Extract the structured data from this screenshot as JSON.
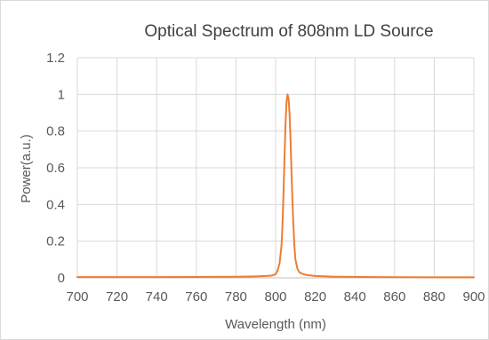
{
  "chart_data": {
    "type": "line",
    "title": "Optical Spectrum of 808nm  LD Source",
    "xlabel": "Wavelength (nm)",
    "ylabel": "Power(a.u.)",
    "xlim": [
      700,
      900
    ],
    "ylim": [
      0,
      1.2
    ],
    "x_ticks": [
      "700",
      "720",
      "740",
      "760",
      "780",
      "800",
      "820",
      "840",
      "860",
      "880",
      "900"
    ],
    "y_ticks": [
      "0",
      "0.2",
      "0.4",
      "0.6",
      "0.8",
      "1",
      "1.2"
    ],
    "grid": true,
    "legend": "none",
    "colors": {
      "series": "#ED7D31",
      "grid": "#d9d9d9",
      "frame": "#d9d9d9"
    },
    "series": [
      {
        "x": [
          700,
          720,
          740,
          760,
          780,
          790,
          795,
          798,
          800,
          801,
          802,
          803,
          803.5,
          804,
          804.5,
          805,
          805.5,
          806,
          806.5,
          807,
          807.5,
          808,
          808.5,
          809,
          809.5,
          810,
          811,
          812,
          814,
          816,
          820,
          830,
          850,
          880,
          900
        ],
        "y": [
          0.004,
          0.004,
          0.004,
          0.005,
          0.006,
          0.008,
          0.01,
          0.012,
          0.02,
          0.04,
          0.08,
          0.18,
          0.3,
          0.47,
          0.66,
          0.84,
          0.96,
          1.0,
          0.98,
          0.9,
          0.76,
          0.58,
          0.42,
          0.28,
          0.17,
          0.1,
          0.05,
          0.03,
          0.02,
          0.015,
          0.01,
          0.006,
          0.004,
          0.003,
          0.003
        ]
      }
    ]
  }
}
